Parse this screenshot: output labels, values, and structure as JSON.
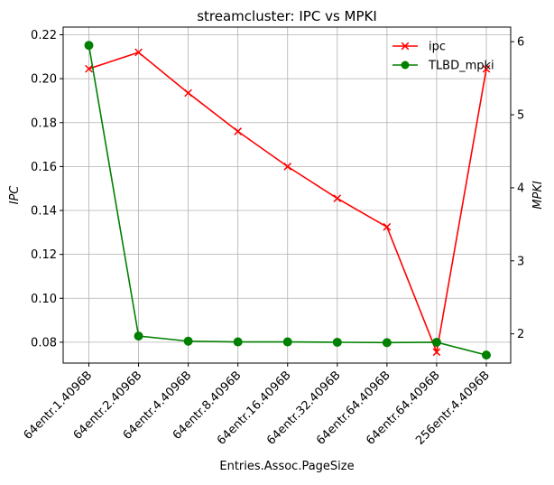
{
  "chart_data": {
    "type": "line",
    "title": "streamcluster: IPC vs MPKI",
    "xlabel": "Entries.Assoc.PageSize",
    "ylabel_left": "IPC",
    "ylabel_right": "MPKI",
    "categories": [
      "64entr.1.4096B",
      "64entr.2.4096B",
      "64entr.4.4096B",
      "64entr.8.4096B",
      "64entr.16.4096B",
      "64entr.32.4096B",
      "64entr.64.4096B",
      "64entr.64.4096B",
      "256entr.4.4096B"
    ],
    "series": [
      {
        "name": "ipc",
        "axis": "left",
        "color": "#ff0000",
        "marker": "x",
        "values": [
          0.2045,
          0.212,
          0.1935,
          0.176,
          0.16,
          0.1455,
          0.1325,
          0.0755,
          0.2045
        ]
      },
      {
        "name": "TLBD_mpki",
        "axis": "right",
        "color": "#008000",
        "marker": "o",
        "values": [
          5.95,
          1.97,
          1.9,
          1.89,
          1.89,
          1.885,
          1.88,
          1.885,
          1.71
        ]
      }
    ],
    "ylim_left": [
      0.0705,
      0.2235
    ],
    "yticks_left": [
      "0.08",
      "0.10",
      "0.12",
      "0.14",
      "0.16",
      "0.18",
      "0.20",
      "0.22"
    ],
    "ylim_right": [
      1.6,
      6.2
    ],
    "yticks_right": [
      "2",
      "3",
      "4",
      "5",
      "6"
    ],
    "grid": true,
    "legend": "top-right"
  }
}
